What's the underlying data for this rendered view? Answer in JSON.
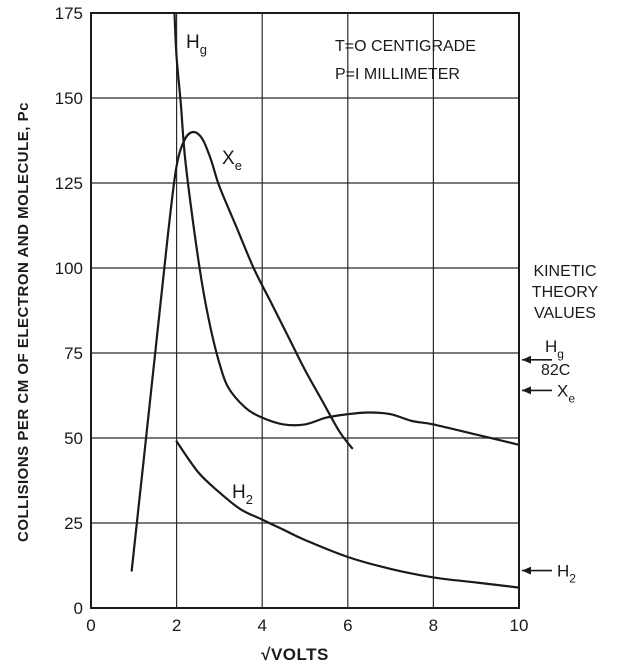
{
  "chart_data": {
    "type": "line",
    "xlabel": "√VOLTS",
    "ylabel": "COLLISIONS PER CM OF ELECTRON AND MOLECULE, Pc",
    "xlim": [
      0,
      10
    ],
    "ylim": [
      0,
      175
    ],
    "x_ticks": [
      "0",
      "2",
      "4",
      "6",
      "8",
      "10"
    ],
    "y_ticks": [
      "0",
      "25",
      "50",
      "75",
      "100",
      "125",
      "150",
      "175"
    ],
    "grid": true,
    "annotations": [
      "T=O CENTIGRADE",
      "P=I MILLIMETER"
    ],
    "series": [
      {
        "name": "Hg",
        "label_main": "H",
        "label_sub": "g",
        "x": [
          1.95,
          2.0,
          2.1,
          2.2,
          2.4,
          2.6,
          2.8,
          3.0,
          3.2,
          3.6,
          4.0,
          4.5,
          5.0,
          5.5,
          6.0,
          6.5,
          7.0,
          7.5,
          8.0,
          9.0,
          10.0
        ],
        "y": [
          175,
          162,
          148,
          132,
          112,
          95,
          82,
          72,
          65,
          59,
          56,
          54,
          54,
          56,
          57,
          57.5,
          57,
          55,
          54,
          51,
          48
        ]
      },
      {
        "name": "Xe",
        "label_main": "X",
        "label_sub": "e",
        "x": [
          0.95,
          1.2,
          1.5,
          1.8,
          2.0,
          2.2,
          2.4,
          2.6,
          2.8,
          3.0,
          3.4,
          3.8,
          4.2,
          4.6,
          5.0,
          5.4,
          5.8,
          6.1
        ],
        "y": [
          11,
          40,
          75,
          110,
          130,
          138,
          140,
          138,
          132,
          124,
          112,
          100,
          90,
          80,
          70,
          61,
          52,
          47
        ]
      },
      {
        "name": "H2",
        "label_main": "H",
        "label_sub": "2",
        "x": [
          2.0,
          2.5,
          3.0,
          3.5,
          4.0,
          4.5,
          5.0,
          6.0,
          7.0,
          8.0,
          9.0,
          10.0
        ],
        "y": [
          49,
          40,
          34,
          29,
          26,
          23,
          20,
          15,
          11.5,
          9,
          7.5,
          6
        ]
      }
    ],
    "kinetic_theory": {
      "title": [
        "KINETIC",
        "THEORY",
        "VALUES"
      ],
      "markers": [
        {
          "label_main": "H",
          "label_sub": "g",
          "label_extra": "82C",
          "value": 73
        },
        {
          "label_main": "X",
          "label_sub": "e",
          "label_extra": "",
          "value": 64
        },
        {
          "label_main": "H",
          "label_sub": "2",
          "label_extra": "",
          "value": 11
        }
      ]
    }
  }
}
